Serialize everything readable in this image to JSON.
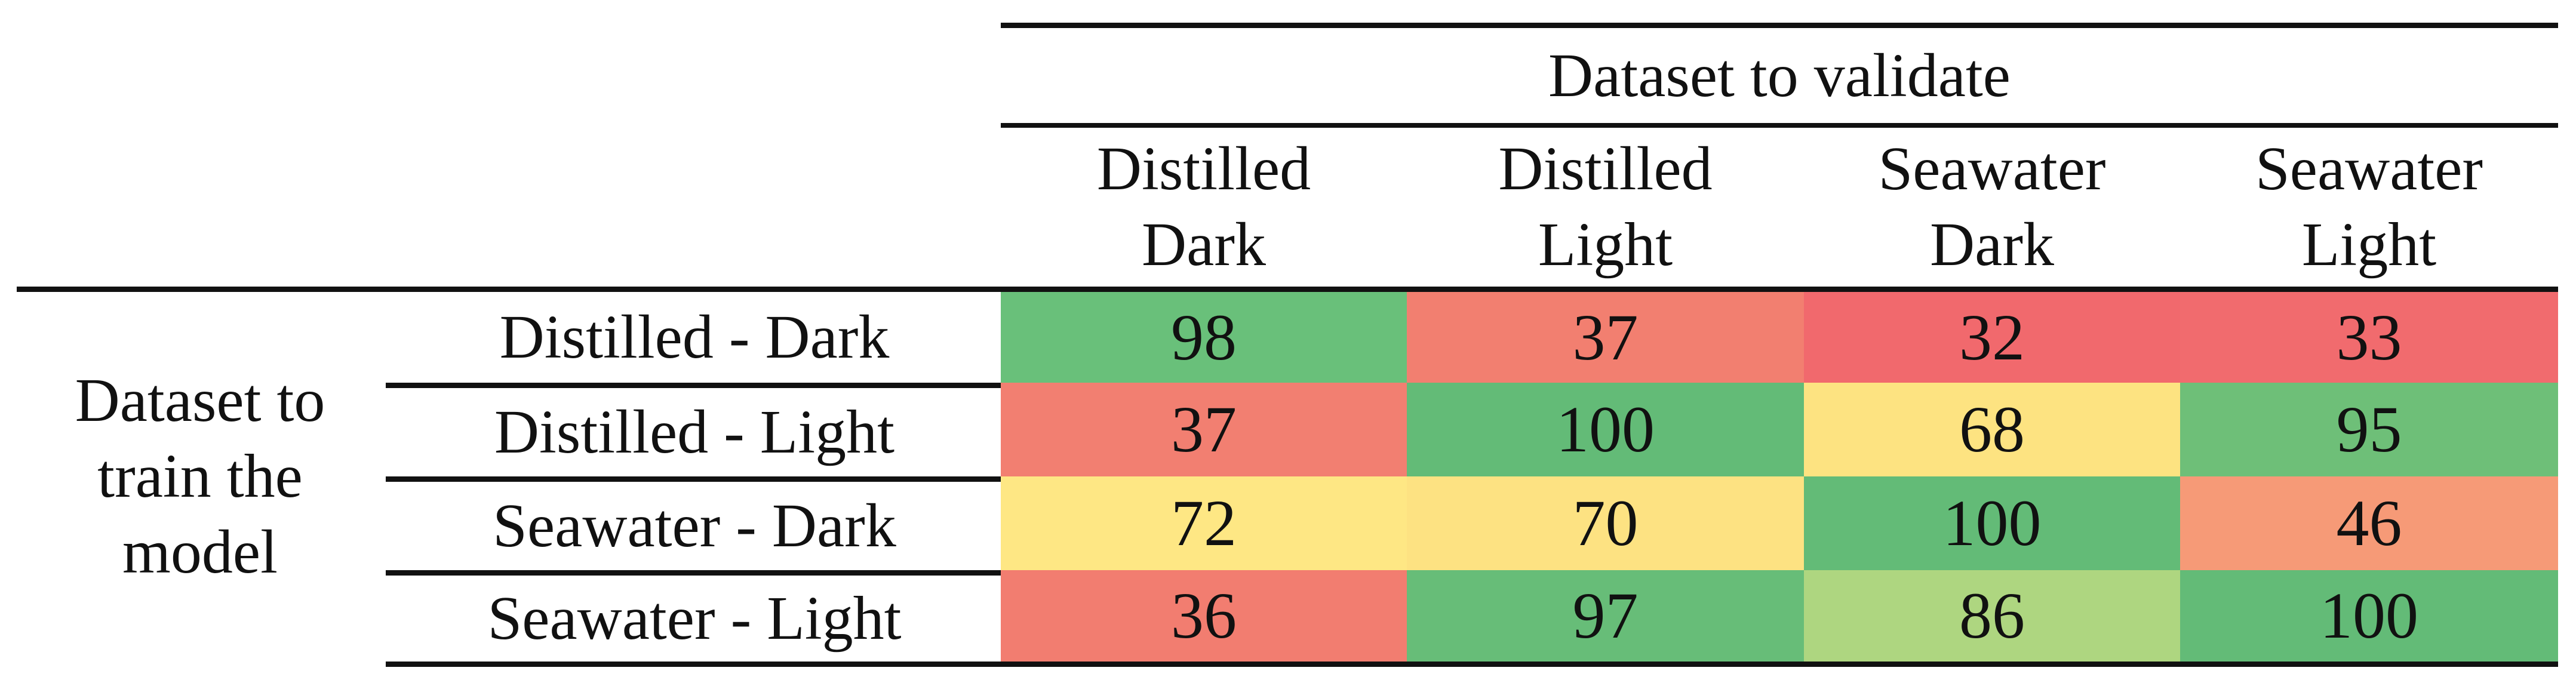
{
  "chart_data": {
    "type": "heatmap",
    "column_group_title": "Dataset to validate",
    "row_group_title": "Dataset to\ntrain the\nmodel",
    "columns": [
      "Distilled\nDark",
      "Distilled\nLight",
      "Seawater\nDark",
      "Seawater\nLight"
    ],
    "rows": [
      "Distilled - Dark",
      "Distilled - Light",
      "Seawater - Dark",
      "Seawater - Light"
    ],
    "values": [
      [
        98,
        37,
        32,
        33
      ],
      [
        37,
        100,
        68,
        95
      ],
      [
        72,
        70,
        100,
        46
      ],
      [
        36,
        97,
        86,
        100
      ]
    ],
    "colors": [
      [
        "#69c07a",
        "#f27f70",
        "#f1696d",
        "#f16b6e"
      ],
      [
        "#f27f71",
        "#63bb77",
        "#fde381",
        "#6ebf78"
      ],
      [
        "#fee784",
        "#fde282",
        "#63bb77",
        "#f69a77"
      ],
      [
        "#f27d70",
        "#67bd78",
        "#aed680",
        "#63bb77"
      ]
    ]
  }
}
